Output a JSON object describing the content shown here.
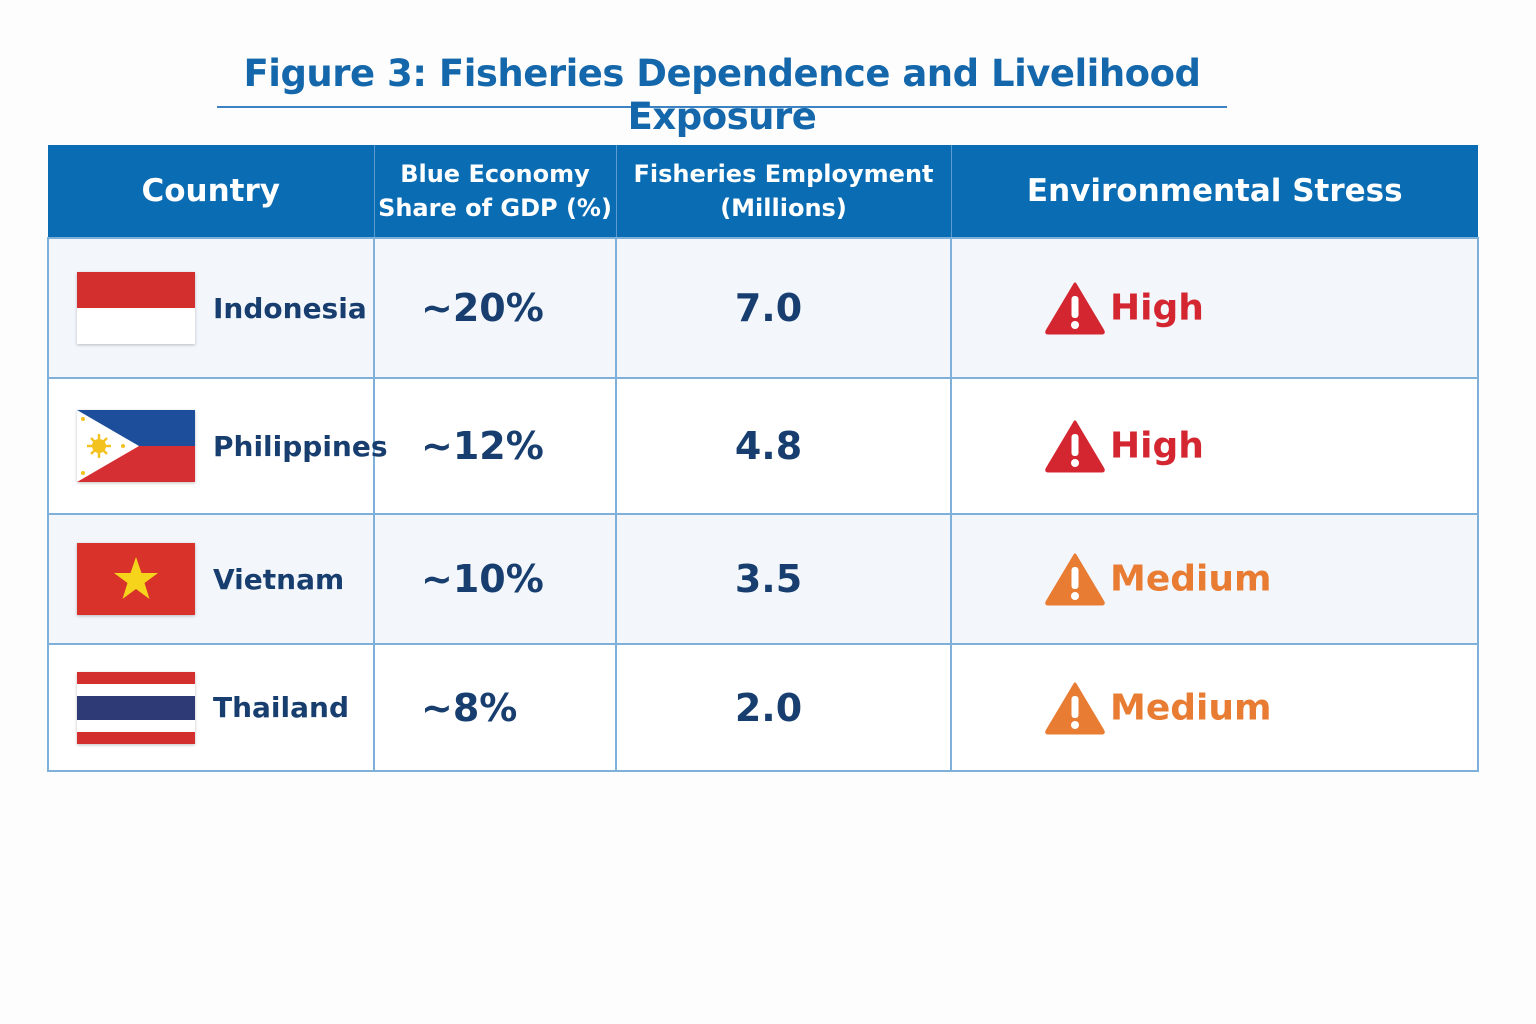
{
  "chart_data": {
    "type": "table",
    "title": "Figure 3: Fisheries Dependence and Livelihood Exposure",
    "columns": [
      "Country",
      "Blue Economy Share of GDP (%)",
      "Fisheries Employment (Millions)",
      "Environmental Stress"
    ],
    "header_lines": {
      "country": "Country",
      "share_1": "Blue Economy",
      "share_2": "Share of GDP (%)",
      "emp_1": "Fisheries Employment",
      "emp_2": "(Millions)",
      "stress": "Environmental Stress"
    },
    "rows": [
      {
        "country": "Indonesia",
        "flag": "indonesia",
        "share": "~20%",
        "employment": "7.0",
        "stress": "High",
        "stress_color": "#d42630"
      },
      {
        "country": "Philippines",
        "flag": "philippines",
        "share": "~12%",
        "employment": "4.8",
        "stress": "High",
        "stress_color": "#d42630"
      },
      {
        "country": "Vietnam",
        "flag": "vietnam",
        "share": "~10%",
        "employment": "3.5",
        "stress": "Medium",
        "stress_color": "#e97c33"
      },
      {
        "country": "Thailand",
        "flag": "thailand",
        "share": "~8%",
        "employment": "2.0",
        "stress": "Medium",
        "stress_color": "#e97c33"
      }
    ],
    "colors": {
      "header": "#0a6cb3",
      "title": "#1467ab",
      "text": "#173e6e"
    }
  }
}
